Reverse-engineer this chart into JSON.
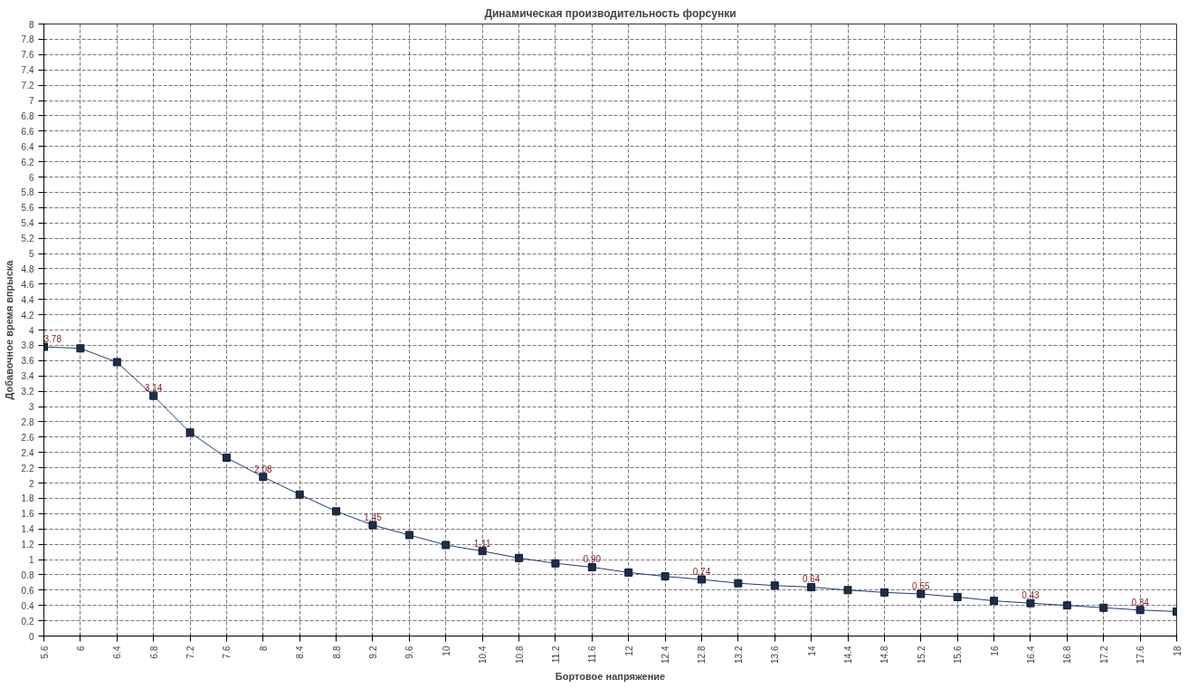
{
  "chart_data": {
    "type": "line",
    "title": "Динамическая производительность форсунки",
    "xlabel": "Бортовое напряжение",
    "ylabel": "Добавочное время впрыска",
    "x": [
      5.6,
      6,
      6.4,
      6.8,
      7.2,
      7.6,
      8,
      8.4,
      8.8,
      9.2,
      9.6,
      10,
      10.4,
      10.8,
      11.2,
      11.6,
      12,
      12.4,
      12.8,
      13.2,
      13.6,
      14,
      14.4,
      14.8,
      15.2,
      15.6,
      16,
      16.4,
      16.8,
      17.2,
      17.6,
      18
    ],
    "series": [
      {
        "color": "#1f3b73",
        "values": [
          3.78,
          3.76,
          3.58,
          3.14,
          2.66,
          2.33,
          2.08,
          1.85,
          1.63,
          1.45,
          1.32,
          1.19,
          1.11,
          1.02,
          0.95,
          0.9,
          0.83,
          0.78,
          0.74,
          0.69,
          0.66,
          0.64,
          0.6,
          0.57,
          0.55,
          0.51,
          0.46,
          0.43,
          0.4,
          0.37,
          0.34,
          0.32
        ],
        "value_labels": [
          "3.78",
          null,
          null,
          "3.14",
          null,
          null,
          "2.08",
          null,
          null,
          "1.45",
          null,
          null,
          "1.11",
          null,
          null,
          "0.90",
          null,
          null,
          "0.74",
          null,
          null,
          "0.64",
          null,
          null,
          "0.55",
          null,
          null,
          "0.43",
          null,
          null,
          "0.34",
          null
        ]
      }
    ],
    "xlim": [
      5.6,
      18
    ],
    "ylim": [
      0,
      8
    ],
    "xticks": [
      5.6,
      6,
      6.4,
      6.8,
      7.2,
      7.6,
      8,
      8.4,
      8.8,
      9.2,
      9.6,
      10,
      10.4,
      10.8,
      11.2,
      11.6,
      12,
      12.4,
      12.8,
      13.2,
      13.6,
      14,
      14.4,
      14.8,
      15.2,
      15.6,
      16,
      16.4,
      16.8,
      17.2,
      17.6,
      18
    ],
    "yticks": [
      0,
      0.2,
      0.4,
      0.6,
      0.8,
      1,
      1.2,
      1.4,
      1.6,
      1.8,
      2,
      2.2,
      2.4,
      2.6,
      2.8,
      3,
      3.2,
      3.4,
      3.6,
      3.8,
      4,
      4.2,
      4.4,
      4.6,
      4.8,
      5,
      5.2,
      5.4,
      5.6,
      5.8,
      6,
      6.2,
      6.4,
      6.6,
      6.8,
      7,
      7.2,
      7.4,
      7.6,
      7.8,
      8
    ],
    "grid": true,
    "marker": "square",
    "line_style": "solid"
  }
}
